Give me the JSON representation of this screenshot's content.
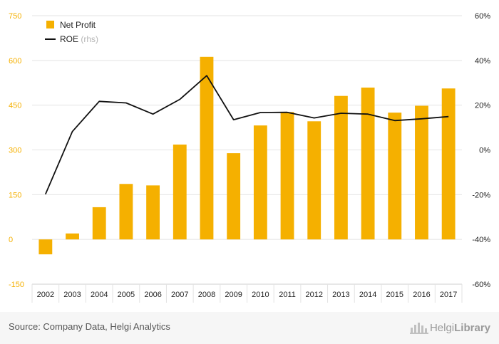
{
  "chart_data": {
    "type": "bar",
    "categories": [
      "2002",
      "2003",
      "2004",
      "2005",
      "2006",
      "2007",
      "2008",
      "2009",
      "2010",
      "2011",
      "2012",
      "2013",
      "2014",
      "2015",
      "2016",
      "2017"
    ],
    "series": [
      {
        "name": "Net Profit",
        "type": "bar",
        "axis": "left",
        "color": "#f5b000",
        "values": [
          -50,
          20,
          108,
          186,
          181,
          318,
          612,
          289,
          382,
          427,
          396,
          481,
          509,
          425,
          448,
          506
        ]
      },
      {
        "name": "ROE",
        "suffix": "(rhs)",
        "type": "line",
        "axis": "right",
        "color": "#111111",
        "values": [
          -19.8,
          8.2,
          21.7,
          21.0,
          16.0,
          22.6,
          33.2,
          13.5,
          16.7,
          16.8,
          14.3,
          16.4,
          16.0,
          13.1,
          13.9,
          14.9
        ]
      }
    ],
    "y_left": {
      "min": -150,
      "max": 750,
      "ticks": [
        -150,
        0,
        150,
        300,
        450,
        600,
        750
      ],
      "color": "#f5b000"
    },
    "y_right": {
      "min": -60,
      "max": 60,
      "ticks": [
        "-60%",
        "-40%",
        "-20%",
        "0%",
        "20%",
        "40%",
        "60%"
      ]
    },
    "title": "",
    "xlabel": "",
    "ylabel": "",
    "legend_position": "top-left",
    "grid": true
  },
  "footer": {
    "source": "Source: Company Data, Helgi Analytics",
    "logo_regular": "Helgi",
    "logo_bold": "Library",
    "logo_icon": "helgi-library-logo-icon"
  }
}
